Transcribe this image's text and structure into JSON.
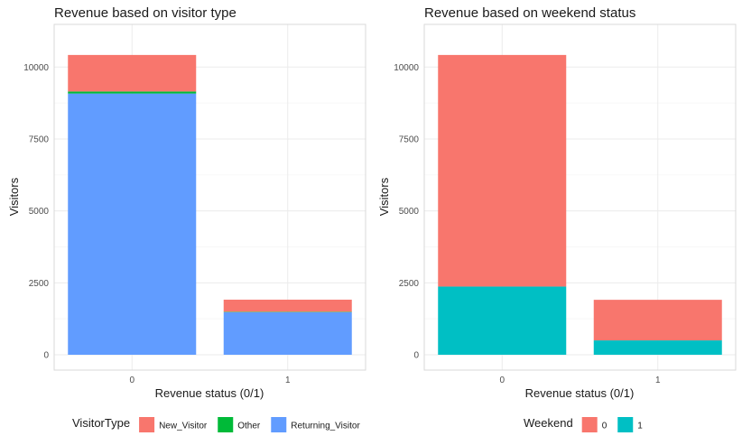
{
  "chart_data": [
    {
      "type": "bar",
      "stacked": true,
      "title": "Revenue based on visitor type",
      "xlabel": "Revenue status (0/1)",
      "ylabel": "Visitors",
      "categories": [
        "0",
        "1"
      ],
      "ylim": [
        0,
        10950
      ],
      "yticks": [
        0,
        2500,
        5000,
        7500,
        10000
      ],
      "grid": true,
      "legend_title": "VisitorType",
      "legend_position": "bottom",
      "stack_order": [
        "Returning_Visitor",
        "Other",
        "New_Visitor"
      ],
      "series": [
        {
          "name": "New_Visitor",
          "color": "#F8766D",
          "values": [
            1270,
            420
          ]
        },
        {
          "name": "Other",
          "color": "#00BA38",
          "values": [
            70,
            15
          ]
        },
        {
          "name": "Returning_Visitor",
          "color": "#619CFF",
          "values": [
            9080,
            1480
          ]
        }
      ]
    },
    {
      "type": "bar",
      "stacked": true,
      "title": "Revenue based on weekend status",
      "xlabel": "Revenue status (0/1)",
      "ylabel": "Visitors",
      "categories": [
        "0",
        "1"
      ],
      "ylim": [
        0,
        10950
      ],
      "yticks": [
        0,
        2500,
        5000,
        7500,
        10000
      ],
      "grid": true,
      "legend_title": "Weekend",
      "legend_position": "bottom",
      "stack_order": [
        "1",
        "0"
      ],
      "series": [
        {
          "name": "0",
          "color": "#F8766D",
          "values": [
            8050,
            1410
          ]
        },
        {
          "name": "1",
          "color": "#00BFC4",
          "values": [
            2370,
            500
          ]
        }
      ]
    }
  ]
}
